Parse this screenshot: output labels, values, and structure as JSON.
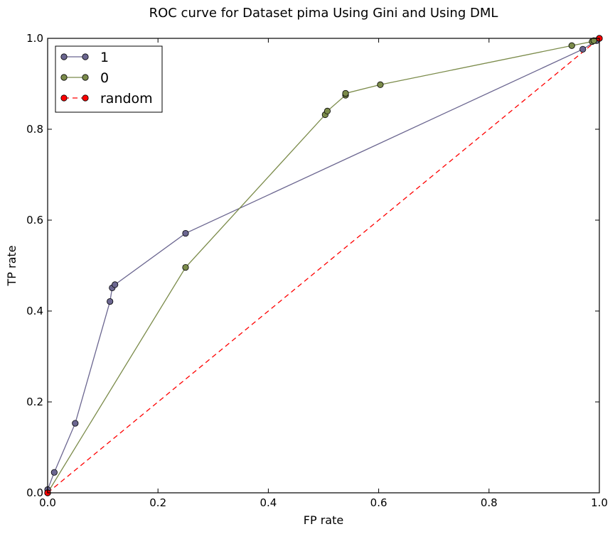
{
  "chart_data": {
    "type": "line",
    "title": "ROC curve for Dataset pima Using Gini and Using DML",
    "xlabel": "FP rate",
    "ylabel": "TP rate",
    "xlim": [
      0,
      1
    ],
    "ylim": [
      0,
      1
    ],
    "xticks": [
      "0.0",
      "0.2",
      "0.4",
      "0.6",
      "0.8",
      "1.0"
    ],
    "yticks": [
      "0.0",
      "0.2",
      "0.4",
      "0.6",
      "0.8",
      "1.0"
    ],
    "grid": false,
    "legend_position": "upper-left",
    "series": [
      {
        "name": "1",
        "color": "#6b6690",
        "style": "solid",
        "x": [
          0.0,
          0.0,
          0.012,
          0.05,
          0.113,
          0.117,
          0.122,
          0.25,
          0.97,
          0.995,
          1.0
        ],
        "y": [
          0.0,
          0.007,
          0.045,
          0.153,
          0.421,
          0.451,
          0.458,
          0.571,
          0.976,
          0.995,
          1.0
        ]
      },
      {
        "name": "0",
        "color": "#7b8b4a",
        "style": "solid",
        "x": [
          0.0,
          0.25,
          0.503,
          0.507,
          0.54,
          0.54,
          0.603,
          0.95,
          0.987,
          0.99,
          1.0
        ],
        "y": [
          0.0,
          0.496,
          0.832,
          0.84,
          0.875,
          0.879,
          0.898,
          0.984,
          0.993,
          0.995,
          1.0
        ]
      },
      {
        "name": "random",
        "color": "#ff0000",
        "style": "dashed",
        "x": [
          0.0,
          1.0
        ],
        "y": [
          0.0,
          1.0
        ]
      }
    ]
  }
}
